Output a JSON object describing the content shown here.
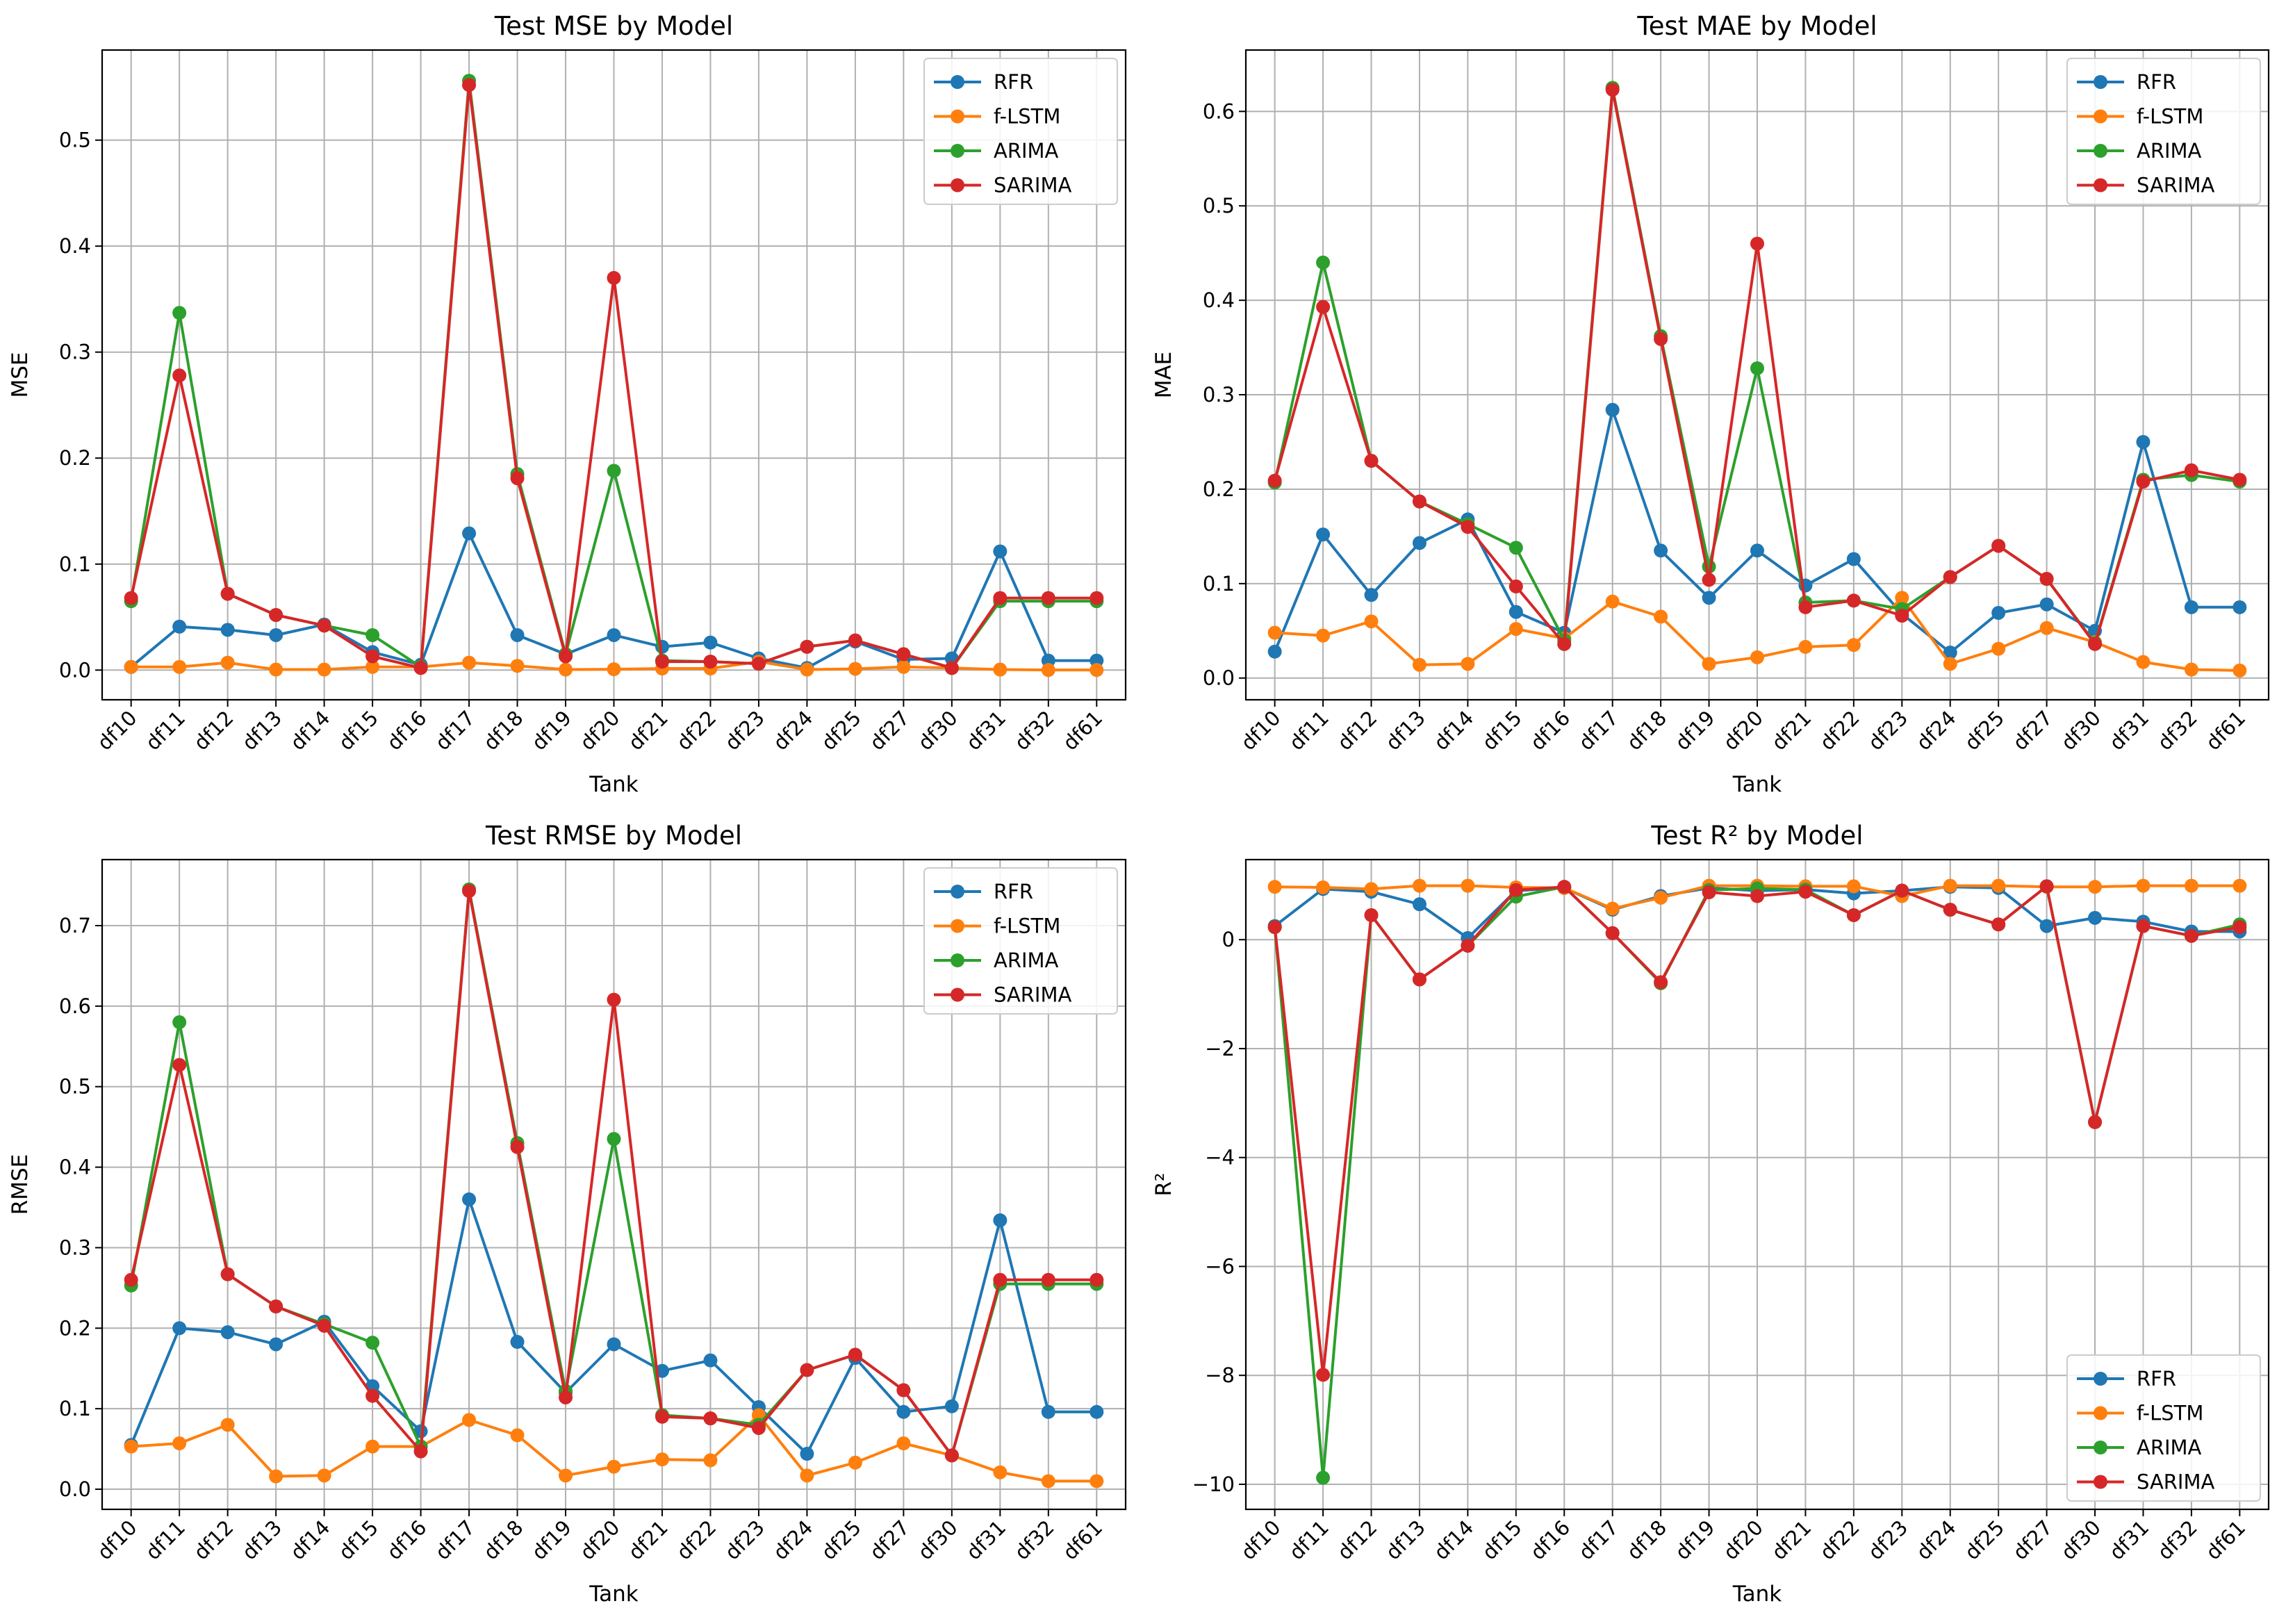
{
  "chart_data": [
    {
      "type": "line",
      "title": "Test MSE by Model",
      "xlabel": "Tank",
      "ylabel": "MSE",
      "legend_position": "top-right",
      "grid": true,
      "categories": [
        "df10",
        "df11",
        "df12",
        "df13",
        "df14",
        "df15",
        "df16",
        "df17",
        "df18",
        "df19",
        "df20",
        "df21",
        "df22",
        "df23",
        "df24",
        "df25",
        "df27",
        "df30",
        "df31",
        "df32",
        "df61"
      ],
      "ylim": [
        -0.028,
        0.585
      ],
      "yticks": [
        0.0,
        0.1,
        0.2,
        0.3,
        0.4,
        0.5
      ],
      "ytick_labels": [
        "0.0",
        "0.1",
        "0.2",
        "0.3",
        "0.4",
        "0.5"
      ],
      "series": [
        {
          "name": "RFR",
          "color": "#1f77b4",
          "values": [
            0.003,
            0.041,
            0.038,
            0.033,
            0.043,
            0.017,
            0.005,
            0.129,
            0.033,
            0.015,
            0.033,
            0.022,
            0.026,
            0.011,
            0.002,
            0.027,
            0.01,
            0.011,
            0.112,
            0.009,
            0.009
          ]
        },
        {
          "name": "f-LSTM",
          "color": "#ff7f0e",
          "values": [
            0.003,
            0.003,
            0.007,
            0.0005,
            0.0005,
            0.003,
            0.003,
            0.007,
            0.004,
            0.0005,
            0.0008,
            0.0015,
            0.0015,
            0.008,
            0.0005,
            0.0012,
            0.003,
            0.002,
            0.0005,
            0.0001,
            0.0001
          ]
        },
        {
          "name": "ARIMA",
          "color": "#2ca02c",
          "values": [
            0.065,
            0.337,
            0.072,
            0.052,
            0.042,
            0.033,
            0.003,
            0.556,
            0.185,
            0.015,
            0.188,
            0.009,
            0.008,
            0.006,
            0.022,
            0.028,
            0.015,
            0.002,
            0.065,
            0.065,
            0.065
          ]
        },
        {
          "name": "SARIMA",
          "color": "#d62728",
          "values": [
            0.068,
            0.278,
            0.072,
            0.052,
            0.042,
            0.013,
            0.002,
            0.552,
            0.181,
            0.013,
            0.37,
            0.008,
            0.008,
            0.006,
            0.022,
            0.028,
            0.015,
            0.002,
            0.068,
            0.068,
            0.068
          ]
        }
      ]
    },
    {
      "type": "line",
      "title": "Test MAE by Model",
      "xlabel": "Tank",
      "ylabel": "MAE",
      "legend_position": "top-right",
      "grid": true,
      "categories": [
        "df10",
        "df11",
        "df12",
        "df13",
        "df14",
        "df15",
        "df16",
        "df17",
        "df18",
        "df19",
        "df20",
        "df21",
        "df22",
        "df23",
        "df24",
        "df25",
        "df27",
        "df30",
        "df31",
        "df32",
        "df61"
      ],
      "ylim": [
        -0.023,
        0.665
      ],
      "yticks": [
        0.0,
        0.1,
        0.2,
        0.3,
        0.4,
        0.5,
        0.6
      ],
      "ytick_labels": [
        "0.0",
        "0.1",
        "0.2",
        "0.3",
        "0.4",
        "0.5",
        "0.6"
      ],
      "series": [
        {
          "name": "RFR",
          "color": "#1f77b4",
          "values": [
            0.028,
            0.152,
            0.088,
            0.143,
            0.168,
            0.07,
            0.048,
            0.284,
            0.135,
            0.085,
            0.135,
            0.098,
            0.126,
            0.068,
            0.027,
            0.069,
            0.078,
            0.05,
            0.25,
            0.075,
            0.075
          ]
        },
        {
          "name": "f-LSTM",
          "color": "#ff7f0e",
          "values": [
            0.048,
            0.045,
            0.06,
            0.014,
            0.015,
            0.052,
            0.042,
            0.081,
            0.065,
            0.015,
            0.022,
            0.033,
            0.035,
            0.085,
            0.015,
            0.031,
            0.053,
            0.038,
            0.017,
            0.009,
            0.008
          ]
        },
        {
          "name": "ARIMA",
          "color": "#2ca02c",
          "values": [
            0.207,
            0.44,
            0.23,
            0.187,
            0.163,
            0.138,
            0.04,
            0.625,
            0.362,
            0.118,
            0.328,
            0.08,
            0.082,
            0.073,
            0.107,
            0.14,
            0.105,
            0.037,
            0.21,
            0.215,
            0.208
          ]
        },
        {
          "name": "SARIMA",
          "color": "#d62728",
          "values": [
            0.209,
            0.393,
            0.23,
            0.187,
            0.16,
            0.097,
            0.036,
            0.623,
            0.359,
            0.104,
            0.46,
            0.075,
            0.082,
            0.066,
            0.107,
            0.14,
            0.105,
            0.036,
            0.208,
            0.22,
            0.21
          ]
        }
      ]
    },
    {
      "type": "line",
      "title": "Test RMSE by Model",
      "xlabel": "Tank",
      "ylabel": "RMSE",
      "legend_position": "top-right",
      "grid": true,
      "categories": [
        "df10",
        "df11",
        "df12",
        "df13",
        "df14",
        "df15",
        "df16",
        "df17",
        "df18",
        "df19",
        "df20",
        "df21",
        "df22",
        "df23",
        "df24",
        "df25",
        "df27",
        "df30",
        "df31",
        "df32",
        "df61"
      ],
      "ylim": [
        -0.025,
        0.782
      ],
      "yticks": [
        0.0,
        0.1,
        0.2,
        0.3,
        0.4,
        0.5,
        0.6,
        0.7
      ],
      "ytick_labels": [
        "0.0",
        "0.1",
        "0.2",
        "0.3",
        "0.4",
        "0.5",
        "0.6",
        "0.7"
      ],
      "series": [
        {
          "name": "RFR",
          "color": "#1f77b4",
          "values": [
            0.055,
            0.2,
            0.195,
            0.18,
            0.208,
            0.128,
            0.072,
            0.36,
            0.183,
            0.12,
            0.18,
            0.147,
            0.16,
            0.102,
            0.044,
            0.163,
            0.096,
            0.103,
            0.334,
            0.096,
            0.096
          ]
        },
        {
          "name": "f-LSTM",
          "color": "#ff7f0e",
          "values": [
            0.053,
            0.057,
            0.08,
            0.016,
            0.017,
            0.053,
            0.053,
            0.086,
            0.067,
            0.017,
            0.028,
            0.037,
            0.036,
            0.092,
            0.017,
            0.033,
            0.057,
            0.042,
            0.021,
            0.01,
            0.01
          ]
        },
        {
          "name": "ARIMA",
          "color": "#2ca02c",
          "values": [
            0.253,
            0.58,
            0.267,
            0.227,
            0.205,
            0.182,
            0.053,
            0.745,
            0.43,
            0.122,
            0.435,
            0.092,
            0.088,
            0.08,
            0.148,
            0.167,
            0.123,
            0.042,
            0.255,
            0.255,
            0.255
          ]
        },
        {
          "name": "SARIMA",
          "color": "#d62728",
          "values": [
            0.26,
            0.527,
            0.267,
            0.227,
            0.203,
            0.116,
            0.047,
            0.743,
            0.425,
            0.114,
            0.608,
            0.09,
            0.088,
            0.076,
            0.148,
            0.167,
            0.123,
            0.042,
            0.26,
            0.26,
            0.26
          ]
        }
      ]
    },
    {
      "type": "line",
      "title": "Test R² by Model",
      "xlabel": "Tank",
      "ylabel": "R²",
      "legend_position": "bottom-right",
      "grid": true,
      "categories": [
        "df10",
        "df11",
        "df12",
        "df13",
        "df14",
        "df15",
        "df16",
        "df17",
        "df18",
        "df19",
        "df20",
        "df21",
        "df22",
        "df23",
        "df24",
        "df25",
        "df27",
        "df30",
        "df31",
        "df32",
        "df61"
      ],
      "ylim": [
        -10.46,
        1.47
      ],
      "yticks": [
        -10,
        -8,
        -6,
        -4,
        -2,
        0
      ],
      "ytick_labels": [
        "−10",
        "−8",
        "−6",
        "−4",
        "−2",
        "0"
      ],
      "series": [
        {
          "name": "RFR",
          "color": "#1f77b4",
          "values": [
            0.25,
            0.93,
            0.88,
            0.65,
            0.03,
            0.9,
            0.95,
            0.55,
            0.8,
            0.95,
            0.9,
            0.92,
            0.85,
            0.9,
            0.97,
            0.95,
            0.25,
            0.4,
            0.33,
            0.15,
            0.15
          ]
        },
        {
          "name": "f-LSTM",
          "color": "#ff7f0e",
          "values": [
            0.97,
            0.96,
            0.93,
            0.99,
            0.99,
            0.96,
            0.95,
            0.57,
            0.77,
            0.99,
            0.99,
            0.98,
            0.98,
            0.8,
            0.99,
            0.99,
            0.97,
            0.97,
            0.99,
            0.99,
            0.99
          ]
        },
        {
          "name": "ARIMA",
          "color": "#2ca02c",
          "values": [
            0.23,
            -9.88,
            0.45,
            -0.73,
            -0.11,
            0.79,
            0.97,
            0.12,
            -0.8,
            0.91,
            0.94,
            0.92,
            0.45,
            0.9,
            0.55,
            0.28,
            0.98,
            -3.35,
            0.25,
            0.07,
            0.28
          ]
        },
        {
          "name": "SARIMA",
          "color": "#d62728",
          "values": [
            0.23,
            -7.99,
            0.45,
            -0.73,
            -0.11,
            0.91,
            0.97,
            0.12,
            -0.78,
            0.87,
            0.8,
            0.88,
            0.45,
            0.9,
            0.55,
            0.28,
            0.98,
            -3.35,
            0.25,
            0.07,
            0.23
          ]
        }
      ]
    }
  ]
}
